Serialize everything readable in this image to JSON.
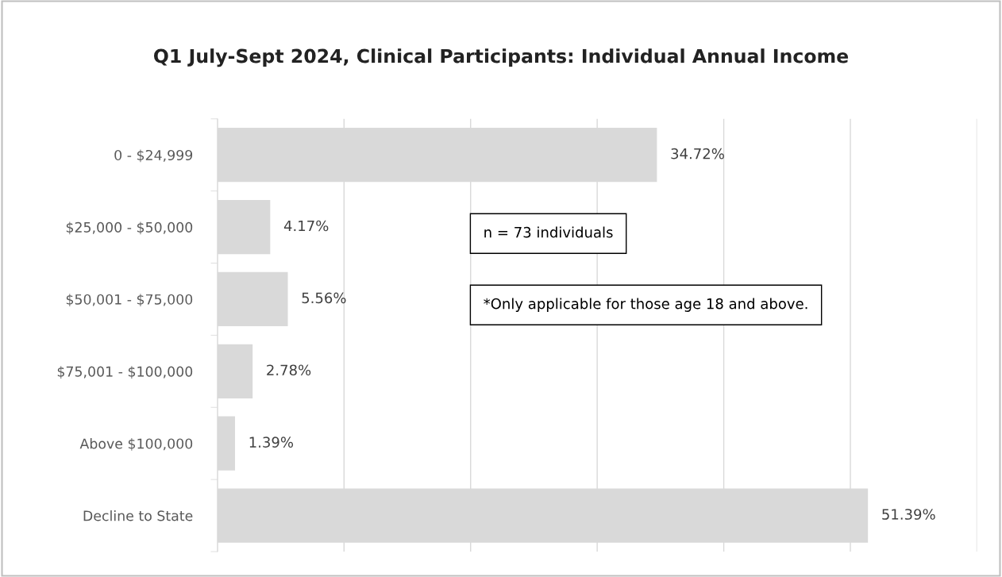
{
  "chart_data": {
    "type": "bar",
    "orientation": "horizontal",
    "title": "Q1 July-Sept 2024, Clinical Participants: Individual Annual Income",
    "categories": [
      "0 - $24,999",
      "$25,000 - $50,000",
      "$50,001 - $75,000",
      "$75,001 - $100,000",
      "Above $100,000",
      "Decline to State"
    ],
    "values": [
      34.72,
      4.17,
      5.56,
      2.78,
      1.39,
      51.39
    ],
    "value_labels": [
      "34.72%",
      "4.17%",
      "5.56%",
      "2.78%",
      "1.39%",
      "51.39%"
    ],
    "color": "#d9d9d9",
    "xlim": [
      0,
      60
    ],
    "xticks": [
      {
        "value": 0,
        "label": null
      },
      {
        "value": 10,
        "label": null
      },
      {
        "value": 20,
        "label": null
      },
      {
        "value": 30,
        "label": null
      },
      {
        "value": 40,
        "label": null
      },
      {
        "value": 50,
        "label": null
      },
      {
        "value": 60,
        "label": null
      }
    ],
    "tick_labels": "y",
    "grid": "x",
    "legend": false,
    "annotations": [
      "n = 73 individuals",
      "*Only applicable for those age 18 and above."
    ]
  }
}
